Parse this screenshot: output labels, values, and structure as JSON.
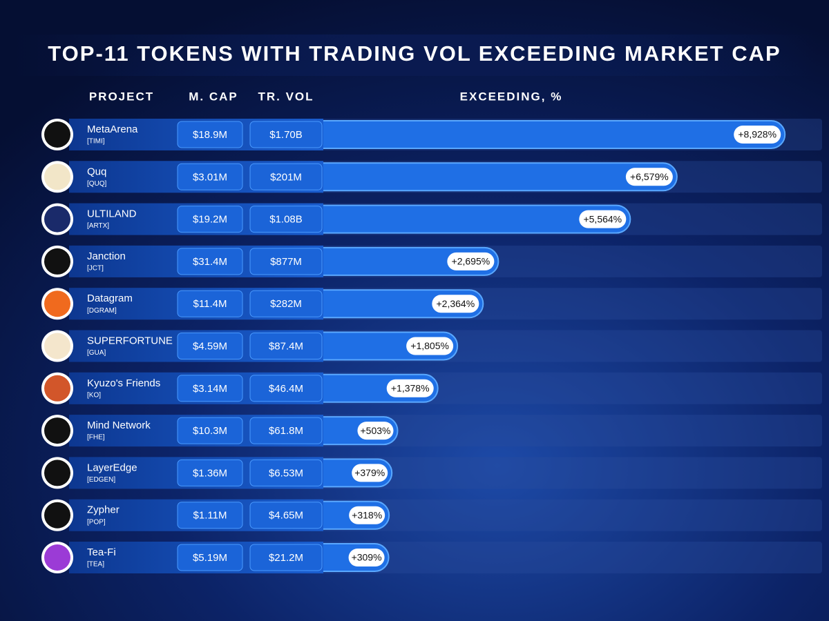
{
  "chart_data": {
    "type": "bar",
    "orientation": "horizontal",
    "title": "TOP-11 TOKENS WITH TRADING VOL EXCEEDING MARKET CAP",
    "columns": [
      "PROJECT",
      "M. CAP",
      "TR. VOL",
      "EXCEEDING, %"
    ],
    "categories": [
      "MetaArena",
      "Quq",
      "ULTILAND",
      "Janction",
      "Datagram",
      "SUPERFORTUNE",
      "Kyuzo's Friends",
      "Mind Network",
      "LayerEdge",
      "Zypher",
      "Tea-Fi"
    ],
    "tickers": [
      "[TIMI]",
      "[QUQ]",
      "[ARTX]",
      "[JCT]",
      "[DGRAM]",
      "[GUA]",
      "[KO]",
      "[FHE]",
      "[EDGEN]",
      "[POP]",
      "[TEA]"
    ],
    "market_cap": [
      "$18.9M",
      "$3.01M",
      "$19.2M",
      "$31.4M",
      "$11.4M",
      "$4.59M",
      "$3.14M",
      "$10.3M",
      "$1.36M",
      "$1.11M",
      "$5.19M"
    ],
    "trading_volume": [
      "$1.70B",
      "$201M",
      "$1.08B",
      "$877M",
      "$282M",
      "$87.4M",
      "$46.4M",
      "$61.8M",
      "$6.53M",
      "$4.65M",
      "$21.2M"
    ],
    "values": [
      8928,
      6579,
      5564,
      2695,
      2364,
      1805,
      1378,
      503,
      379,
      318,
      309
    ],
    "value_labels": [
      "+8,928%",
      "+6,579%",
      "+5,564%",
      "+2,695%",
      "+2,364%",
      "+1,805%",
      "+1,378%",
      "+503%",
      "+379%",
      "+318%",
      "+309%"
    ],
    "xlim": [
      0,
      9000
    ],
    "color": "#1f6fe5"
  }
}
